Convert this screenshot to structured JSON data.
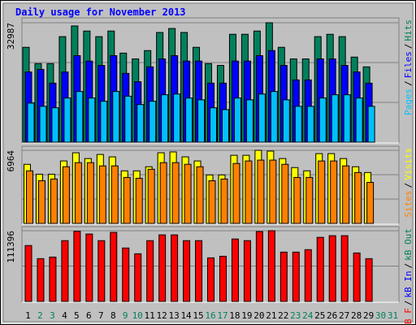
{
  "chart_data": [
    {
      "type": "bar",
      "title": "Daily usage for November 2013",
      "ylim": [
        0,
        32987
      ],
      "yticks": [
        32987
      ],
      "grid_divisions": 3,
      "legend_separator": "/",
      "series": [
        {
          "name": "Hits",
          "color": "#00805c",
          "values": [
            26200,
            21700,
            21700,
            29150,
            32100,
            30700,
            29150,
            30700,
            24600,
            23000,
            25300,
            30300,
            31400,
            30300,
            26200,
            21700,
            21200,
            29800,
            29800,
            30700,
            32987,
            26200,
            23000,
            23000,
            29150,
            29800,
            29150,
            23500,
            20800,
            null,
            null
          ]
        },
        {
          "name": "Files",
          "color": "#0000ff",
          "values": [
            19400,
            20100,
            16300,
            19400,
            23900,
            22400,
            21200,
            23900,
            19000,
            16700,
            20800,
            23000,
            23900,
            22400,
            22400,
            16300,
            16300,
            22400,
            22400,
            23900,
            25300,
            21200,
            17200,
            17200,
            23000,
            23000,
            21200,
            19400,
            16300,
            null,
            null
          ]
        },
        {
          "name": "Pages",
          "color": "#00c0ff",
          "values": [
            10800,
            9900,
            9500,
            12200,
            14000,
            12200,
            11300,
            14000,
            12700,
            10400,
            11300,
            13100,
            13300,
            12200,
            11700,
            9500,
            9000,
            12200,
            11700,
            13300,
            14000,
            11700,
            9900,
            9900,
            12200,
            13100,
            13100,
            12200,
            9900,
            null,
            null
          ]
        }
      ]
    },
    {
      "type": "bar",
      "ylim": [
        0,
        6964
      ],
      "yticks": [
        6964
      ],
      "grid_divisions": 3,
      "series": [
        {
          "name": "Visits",
          "color": "#ffff00",
          "values": [
            5630,
            4690,
            4690,
            5950,
            6730,
            6180,
            6570,
            6340,
            5010,
            5010,
            5400,
            6730,
            6810,
            6340,
            5950,
            4620,
            4620,
            6490,
            6490,
            6964,
            6890,
            6180,
            5320,
            5010,
            6650,
            6650,
            6180,
            5400,
            4850,
            null,
            null
          ]
        },
        {
          "name": "Sites",
          "color": "#ff8000",
          "values": [
            5010,
            4070,
            4230,
            5400,
            5790,
            5790,
            5480,
            5480,
            4380,
            4300,
            5160,
            5790,
            5790,
            5630,
            5400,
            4070,
            4230,
            5710,
            5950,
            6030,
            6030,
            5630,
            4380,
            4380,
            5950,
            5950,
            5480,
            4850,
            3910,
            null,
            null
          ]
        }
      ]
    },
    {
      "type": "bar",
      "ylim": [
        0,
        111396
      ],
      "yticks": [
        111396
      ],
      "grid_divisions": 2,
      "categories": [
        "1",
        "2",
        "3",
        "4",
        "5",
        "6",
        "7",
        "8",
        "9",
        "10",
        "11",
        "12",
        "13",
        "14",
        "15",
        "16",
        "17",
        "18",
        "19",
        "20",
        "21",
        "22",
        "23",
        "24",
        "25",
        "26",
        "27",
        "28",
        "29",
        "30",
        "31"
      ],
      "weekends": [
        false,
        true,
        true,
        false,
        false,
        false,
        false,
        false,
        true,
        true,
        false,
        false,
        false,
        false,
        false,
        true,
        true,
        false,
        false,
        false,
        false,
        false,
        true,
        true,
        false,
        false,
        false,
        false,
        false,
        true,
        true
      ],
      "weekday_color": "#000000",
      "weekend_color": "#00805c",
      "series": [
        {
          "name": "kB F",
          "color": "#ff0000",
          "values": [
            88100,
            67400,
            69900,
            95800,
            110500,
            106200,
            95800,
            108800,
            84200,
            75100,
            95800,
            104900,
            104900,
            95800,
            95800,
            68700,
            71200,
            98400,
            95800,
            110100,
            111396,
            77700,
            77700,
            81600,
            101000,
            103600,
            103600,
            76400,
            67400,
            null,
            null
          ]
        }
      ],
      "legend_extra": [
        {
          "name": "kB In",
          "color": "#0000ff"
        },
        {
          "name": "kB Out",
          "color": "#00805c"
        }
      ]
    }
  ]
}
